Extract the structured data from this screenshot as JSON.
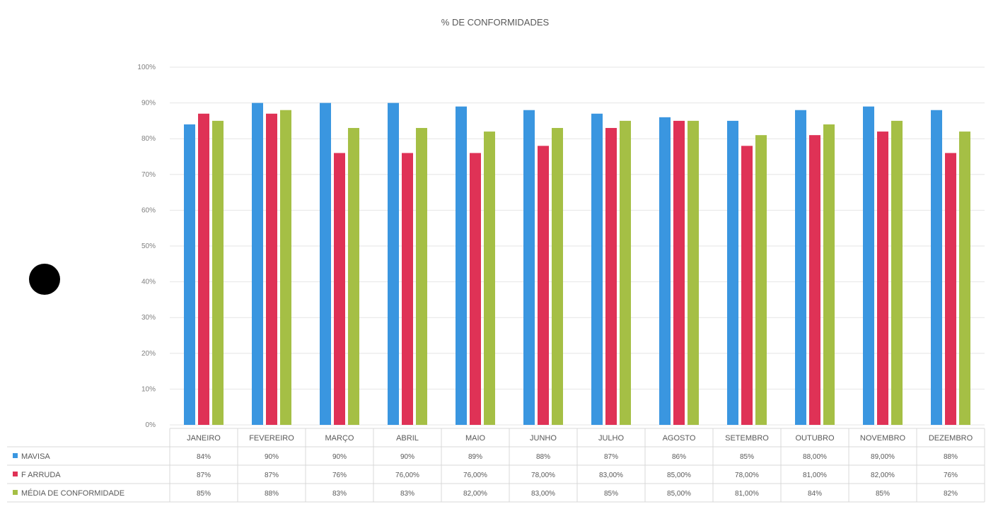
{
  "chart_data": {
    "type": "bar",
    "title": "% DE CONFORMIDADES",
    "xlabel": "",
    "ylabel": "",
    "ylim": [
      0,
      100
    ],
    "yticks": [
      "0%",
      "10%",
      "20%",
      "30%",
      "40%",
      "50%",
      "60%",
      "70%",
      "80%",
      "90%",
      "100%"
    ],
    "grid": true,
    "legend": "data-table",
    "categories": [
      "JANEIRO",
      "FEVEREIRO",
      "MARÇO",
      "ABRIL",
      "MAIO",
      "JUNHO",
      "JULHO",
      "AGOSTO",
      "SETEMBRO",
      "OUTUBRO",
      "NOVEMBRO",
      "DEZEMBRO"
    ],
    "series": [
      {
        "name": "MAVISA",
        "color": "#3a96e0",
        "values": [
          84,
          90,
          90,
          90,
          89,
          88,
          87,
          86,
          85,
          88,
          89,
          88
        ],
        "labels": [
          "84%",
          "90%",
          "90%",
          "90%",
          "89%",
          "88%",
          "87%",
          "86%",
          "85%",
          "88,00%",
          "89,00%",
          "88%"
        ]
      },
      {
        "name": "F ARRUDA",
        "color": "#df3256",
        "values": [
          87,
          87,
          76,
          76,
          76,
          78,
          83,
          85,
          78,
          81,
          82,
          76
        ],
        "labels": [
          "87%",
          "87%",
          "76%",
          "76,00%",
          "76,00%",
          "78,00%",
          "83,00%",
          "85,00%",
          "78,00%",
          "81,00%",
          "82,00%",
          "76%"
        ]
      },
      {
        "name": "MÉDIA DE CONFORMIDADE",
        "color": "#a5bf45",
        "values": [
          85,
          88,
          83,
          83,
          82,
          83,
          85,
          85,
          81,
          84,
          85,
          82
        ],
        "labels": [
          "85%",
          "88%",
          "83%",
          "83%",
          "82,00%",
          "83,00%",
          "85%",
          "85,00%",
          "81,00%",
          "84%",
          "85%",
          "82%"
        ]
      }
    ]
  }
}
